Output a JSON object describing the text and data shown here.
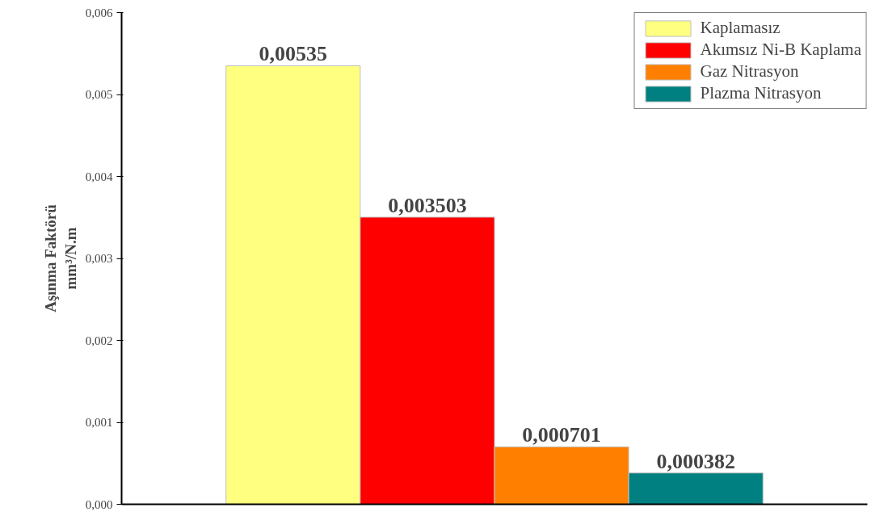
{
  "chart_data": {
    "type": "bar",
    "ylabel": "Aşınma Faktörü\nmm³/N.m",
    "categories": [
      null
    ],
    "series": [
      {
        "name": "Kaplamasız",
        "color": "#ffff80",
        "values": [
          0.00535
        ],
        "value_labels": [
          "0,00535"
        ]
      },
      {
        "name": "Akımsız Ni-B Kaplama",
        "color": "#ff0000",
        "values": [
          0.003503
        ],
        "value_labels": [
          "0,003503"
        ]
      },
      {
        "name": "Gaz Nitrasyon",
        "color": "#ff8000",
        "values": [
          0.000701
        ],
        "value_labels": [
          "0,000701"
        ]
      },
      {
        "name": "Plazma Nitrasyon",
        "color": "#008080",
        "values": [
          0.000382
        ],
        "value_labels": [
          "0,000382"
        ]
      }
    ],
    "ylim": [
      0,
      0.006
    ],
    "yticks": [
      {
        "value": 0,
        "label": "0,000"
      },
      {
        "value": 0.001,
        "label": "0,001"
      },
      {
        "value": 0.002,
        "label": "0,002"
      },
      {
        "value": 0.003,
        "label": "0,003"
      },
      {
        "value": 0.004,
        "label": "0,004"
      },
      {
        "value": 0.005,
        "label": "0,005"
      },
      {
        "value": 0.006,
        "label": "0,006"
      }
    ],
    "legend": "top right",
    "grid": false
  }
}
